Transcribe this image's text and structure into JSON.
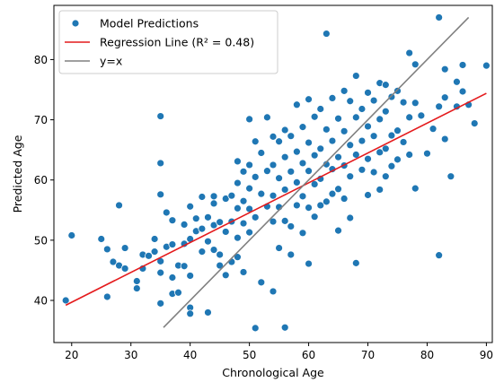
{
  "chart_data": {
    "type": "scatter",
    "xlabel": "Chronological Age",
    "ylabel": "Predicted Age",
    "xlim": [
      17,
      91
    ],
    "ylim": [
      33,
      89
    ],
    "xticks": [
      20,
      30,
      40,
      50,
      60,
      70,
      80,
      90
    ],
    "yticks": [
      40,
      50,
      60,
      70,
      80
    ],
    "grid": false,
    "legend_position": "top-left",
    "legend": [
      {
        "label": "Model Predictions",
        "kind": "marker",
        "color": "#1f77b4"
      },
      {
        "label": "Regression Line (R² = 0.48)",
        "kind": "line",
        "color": "#e41a1c"
      },
      {
        "label": "y=x",
        "kind": "line",
        "color": "#808080"
      }
    ],
    "series": [
      {
        "name": "Model Predictions",
        "kind": "scatter",
        "color": "#1f77b4",
        "points": [
          [
            19,
            40
          ],
          [
            20,
            50.8
          ],
          [
            25,
            50.2
          ],
          [
            26,
            48.5
          ],
          [
            26,
            40.6
          ],
          [
            27,
            46.4
          ],
          [
            28,
            45.8
          ],
          [
            28,
            55.8
          ],
          [
            29,
            48.7
          ],
          [
            29,
            45.3
          ],
          [
            31,
            43.2
          ],
          [
            31,
            42
          ],
          [
            32,
            47.6
          ],
          [
            32,
            45.3
          ],
          [
            33,
            47.4
          ],
          [
            34,
            50.2
          ],
          [
            34,
            48.1
          ],
          [
            35,
            70.6
          ],
          [
            35,
            62.8
          ],
          [
            35,
            57.6
          ],
          [
            35,
            46.5
          ],
          [
            35,
            44.6
          ],
          [
            35,
            39.5
          ],
          [
            36,
            54.6
          ],
          [
            36,
            48.9
          ],
          [
            37,
            53.3
          ],
          [
            37,
            49.3
          ],
          [
            37,
            43.8
          ],
          [
            37,
            41.1
          ],
          [
            38,
            45.8
          ],
          [
            38,
            41.3
          ],
          [
            39,
            52.6
          ],
          [
            39,
            49.4
          ],
          [
            39,
            45.7
          ],
          [
            40,
            55.6
          ],
          [
            40,
            50.2
          ],
          [
            40,
            44.1
          ],
          [
            40,
            38.8
          ],
          [
            40,
            37.8
          ],
          [
            41,
            53.6
          ],
          [
            41,
            51.5
          ],
          [
            42,
            57.2
          ],
          [
            42,
            51.9
          ],
          [
            42,
            48.1
          ],
          [
            43,
            53.8
          ],
          [
            43,
            49.8
          ],
          [
            43,
            38
          ],
          [
            44,
            57.3
          ],
          [
            44,
            56.1
          ],
          [
            44,
            52.5
          ],
          [
            44,
            48.4
          ],
          [
            45,
            53
          ],
          [
            45,
            47.6
          ],
          [
            45,
            45.8
          ],
          [
            46,
            56.9
          ],
          [
            46,
            51.4
          ],
          [
            46,
            44.2
          ],
          [
            47,
            57.4
          ],
          [
            47,
            53.1
          ],
          [
            47,
            46.4
          ],
          [
            48,
            63.1
          ],
          [
            48,
            59.5
          ],
          [
            48,
            55.3
          ],
          [
            48,
            50.4
          ],
          [
            48,
            47.2
          ],
          [
            49,
            61.4
          ],
          [
            49,
            56.5
          ],
          [
            49,
            52.8
          ],
          [
            49,
            44.7
          ],
          [
            50,
            70.1
          ],
          [
            50,
            62.5
          ],
          [
            50,
            58.6
          ],
          [
            50,
            55.2
          ],
          [
            50,
            51.3
          ],
          [
            51,
            66.4
          ],
          [
            51,
            60.5
          ],
          [
            51,
            53.8
          ],
          [
            51,
            35.4
          ],
          [
            52,
            64.5
          ],
          [
            52,
            57.7
          ],
          [
            52,
            43
          ],
          [
            53,
            70.4
          ],
          [
            53,
            61.5
          ],
          [
            53,
            55.6
          ],
          [
            54,
            67.2
          ],
          [
            54,
            62.5
          ],
          [
            54,
            57.4
          ],
          [
            54,
            53.1
          ],
          [
            54,
            41.5
          ],
          [
            55,
            66.4
          ],
          [
            55,
            60.3
          ],
          [
            55,
            55.5
          ],
          [
            55,
            48.7
          ],
          [
            56,
            68.3
          ],
          [
            56,
            63.8
          ],
          [
            56,
            58.4
          ],
          [
            56,
            53.2
          ],
          [
            56,
            35.5
          ],
          [
            57,
            67.3
          ],
          [
            57,
            61.4
          ],
          [
            57,
            52.3
          ],
          [
            57,
            47.6
          ],
          [
            58,
            72.5
          ],
          [
            58,
            64.7
          ],
          [
            58,
            59.6
          ],
          [
            58,
            55.8
          ],
          [
            59,
            68.8
          ],
          [
            59,
            62.8
          ],
          [
            59,
            57.3
          ],
          [
            59,
            51.2
          ],
          [
            60,
            73.4
          ],
          [
            60,
            66.2
          ],
          [
            60,
            61.5
          ],
          [
            60,
            55.4
          ],
          [
            60,
            46.1
          ],
          [
            61,
            70.5
          ],
          [
            61,
            64.1
          ],
          [
            61,
            59.3
          ],
          [
            61,
            53.9
          ],
          [
            62,
            71.8
          ],
          [
            62,
            65.2
          ],
          [
            62,
            60.2
          ],
          [
            62,
            55.8
          ],
          [
            63,
            84.3
          ],
          [
            63,
            68.4
          ],
          [
            63,
            62.6
          ],
          [
            63,
            56.4
          ],
          [
            64,
            73.6
          ],
          [
            64,
            66.5
          ],
          [
            64,
            61.8
          ],
          [
            64,
            57.7
          ],
          [
            65,
            70.2
          ],
          [
            65,
            63.8
          ],
          [
            65,
            58.5
          ],
          [
            65,
            51.6
          ],
          [
            66,
            74.8
          ],
          [
            66,
            68.1
          ],
          [
            66,
            62.4
          ],
          [
            66,
            56.9
          ],
          [
            67,
            73.1
          ],
          [
            67,
            65.8
          ],
          [
            67,
            60.6
          ],
          [
            67,
            53.7
          ],
          [
            68,
            77.3
          ],
          [
            68,
            70.4
          ],
          [
            68,
            64.2
          ],
          [
            68,
            46.2
          ],
          [
            69,
            71.8
          ],
          [
            69,
            66.5
          ],
          [
            69,
            61.7
          ],
          [
            70,
            74.5
          ],
          [
            70,
            68.9
          ],
          [
            70,
            63.5
          ],
          [
            70,
            57.5
          ],
          [
            71,
            73.2
          ],
          [
            71,
            67.3
          ],
          [
            71,
            61.3
          ],
          [
            72,
            76.1
          ],
          [
            72,
            70.1
          ],
          [
            72,
            64.6
          ],
          [
            72,
            58.4
          ],
          [
            73,
            75.8
          ],
          [
            73,
            71.4
          ],
          [
            73,
            65.2
          ],
          [
            73,
            60.6
          ],
          [
            74,
            73.8
          ],
          [
            74,
            67.4
          ],
          [
            74,
            62.3
          ],
          [
            75,
            74.8
          ],
          [
            75,
            68.2
          ],
          [
            75,
            63.4
          ],
          [
            76,
            72.9
          ],
          [
            76,
            66.3
          ],
          [
            77,
            81.1
          ],
          [
            77,
            70.4
          ],
          [
            77,
            64.2
          ],
          [
            78,
            79.2
          ],
          [
            78,
            72.8
          ],
          [
            78,
            58.6
          ],
          [
            79,
            70.7
          ],
          [
            80,
            64.4
          ],
          [
            81,
            68.5
          ],
          [
            82,
            87
          ],
          [
            82,
            72.2
          ],
          [
            82,
            47.5
          ],
          [
            83,
            78.4
          ],
          [
            83,
            73.7
          ],
          [
            83,
            66.8
          ],
          [
            84,
            60.6
          ],
          [
            85,
            76.3
          ],
          [
            85,
            72.2
          ],
          [
            86,
            79.1
          ],
          [
            86,
            74.7
          ],
          [
            87,
            72.5
          ],
          [
            88,
            69.4
          ],
          [
            90,
            79
          ]
        ]
      },
      {
        "name": "Regression Line (R² = 0.48)",
        "kind": "line",
        "color": "#e41a1c",
        "points": [
          [
            19,
            39.2
          ],
          [
            90,
            74.4
          ]
        ]
      },
      {
        "name": "y=x",
        "kind": "line",
        "color": "#808080",
        "points": [
          [
            35.5,
            35.5
          ],
          [
            87,
            87
          ]
        ]
      }
    ]
  }
}
